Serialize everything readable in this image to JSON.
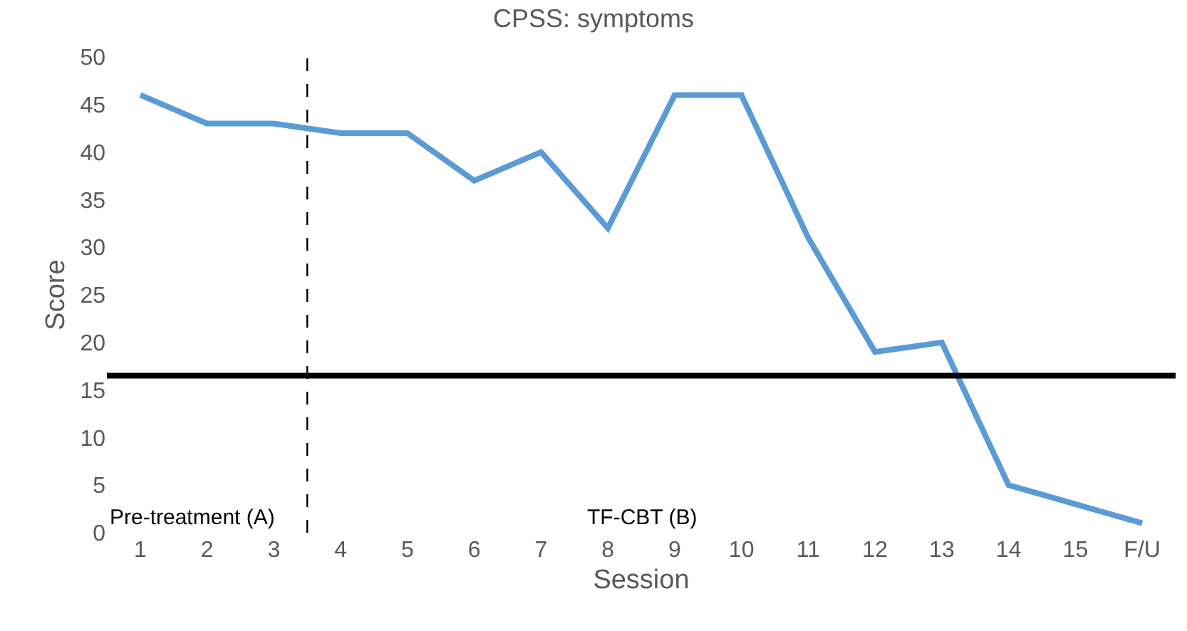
{
  "chart_data": {
    "type": "line",
    "title": "CPSS: symptoms",
    "xlabel": "Session",
    "ylabel": "Score",
    "x": [
      1,
      2,
      3,
      4,
      5,
      6,
      7,
      8,
      9,
      10,
      11,
      12,
      13,
      14,
      15,
      16
    ],
    "series": [
      {
        "color": "#5b9bd5",
        "values": [
          46,
          43,
          43,
          42,
          42,
          37,
          40,
          32,
          46,
          46,
          31,
          19,
          20,
          5,
          3,
          1
        ]
      }
    ],
    "xlim": [
      0.5,
      16.5
    ],
    "xticks": [
      1,
      2,
      3,
      4,
      5,
      6,
      7,
      8,
      9,
      10,
      11,
      12,
      13,
      14,
      15,
      {
        "value": 16,
        "label": "F/U"
      }
    ],
    "ylim": [
      0,
      50
    ],
    "yticks": [
      0,
      5,
      10,
      15,
      20,
      25,
      30,
      35,
      40,
      45,
      50
    ],
    "ref_lines": [
      {
        "axis": "y",
        "value": 16.5,
        "color": "#000000",
        "line_style": "solid"
      },
      {
        "axis": "x",
        "value": 3.5,
        "color": "#000000",
        "line_style": "dashed"
      }
    ],
    "annotations": [
      "Pre-treatment (A)",
      "TF-CBT (B)"
    ],
    "marker": "none",
    "line_style": "solid"
  }
}
